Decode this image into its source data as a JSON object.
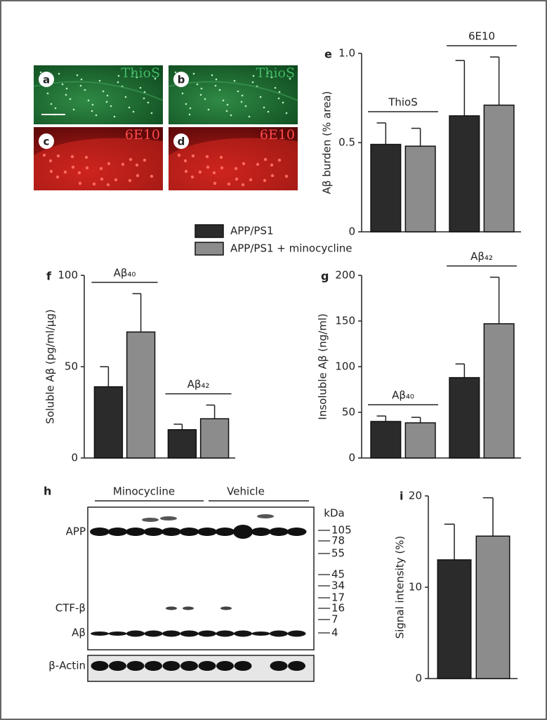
{
  "micrographs": [
    {
      "label": "a",
      "stain": "ThioS"
    },
    {
      "label": "b",
      "stain": "ThioS"
    },
    {
      "label": "c",
      "stain": "6E10"
    },
    {
      "label": "d",
      "stain": "6E10"
    }
  ],
  "blot": {
    "label": "h",
    "groups": [
      "Minocycline",
      "Vehicle"
    ],
    "unit": "kDa",
    "markers": [
      105,
      78,
      55,
      45,
      34,
      17,
      16,
      7,
      4
    ],
    "bands": [
      "APP",
      "CTF-β",
      "Aβ"
    ],
    "loading": "β-Actin"
  },
  "chart_data": [
    {
      "type": "bar",
      "label": "e",
      "y_label": "Aβ burden (% area)",
      "categories": [
        "ThioS",
        "6E10"
      ],
      "series": [
        {
          "name": "APP/PS1",
          "color": "#2b2b2b",
          "values": [
            0.49,
            0.65
          ],
          "errors": [
            0.12,
            0.31
          ]
        },
        {
          "name": "APP/PS1 + minocycline",
          "color": "#8c8c8c",
          "values": [
            0.48,
            0.71
          ],
          "errors": [
            0.1,
            0.27
          ]
        }
      ],
      "ylim": [
        0,
        1
      ],
      "yticks": [
        0,
        0.5,
        {
          "value": 1,
          "label": "1.0"
        }
      ]
    },
    {
      "type": "bar",
      "label": "f",
      "y_label": "Soluble Aβ (pg/ml/μg)",
      "categories": [
        "Aβ₄₀",
        "Aβ₄₂"
      ],
      "series": [
        {
          "color": "#2b2b2b",
          "values": [
            39,
            15.5
          ],
          "errors": [
            11,
            3
          ]
        },
        {
          "color": "#8c8c8c",
          "values": [
            69,
            21.5
          ],
          "errors": [
            21,
            7.5
          ]
        }
      ],
      "ylim": [
        0,
        100
      ],
      "yticks": [
        0,
        50,
        100
      ]
    },
    {
      "type": "bar",
      "label": "g",
      "y_label": "Insoluble Aβ (ng/ml)",
      "categories": [
        "Aβ₄₀",
        "Aβ₄₂"
      ],
      "series": [
        {
          "color": "#2b2b2b",
          "values": [
            40,
            88
          ],
          "errors": [
            6,
            15
          ]
        },
        {
          "color": "#8c8c8c",
          "values": [
            38.5,
            147
          ],
          "errors": [
            6,
            51
          ]
        }
      ],
      "ylim": [
        0,
        200
      ],
      "yticks": [
        0,
        50,
        100,
        150,
        200
      ]
    },
    {
      "type": "bar",
      "label": "i",
      "y_label": "Signal intensity (%)",
      "categories": [
        null
      ],
      "series": [
        {
          "color": "#2b2b2b",
          "values": [
            13
          ],
          "errors": [
            3.9
          ]
        },
        {
          "color": "#8c8c8c",
          "values": [
            15.6
          ],
          "errors": [
            4.2
          ]
        }
      ],
      "ylim": [
        0,
        20
      ],
      "yticks": [
        0,
        10,
        20
      ]
    }
  ]
}
